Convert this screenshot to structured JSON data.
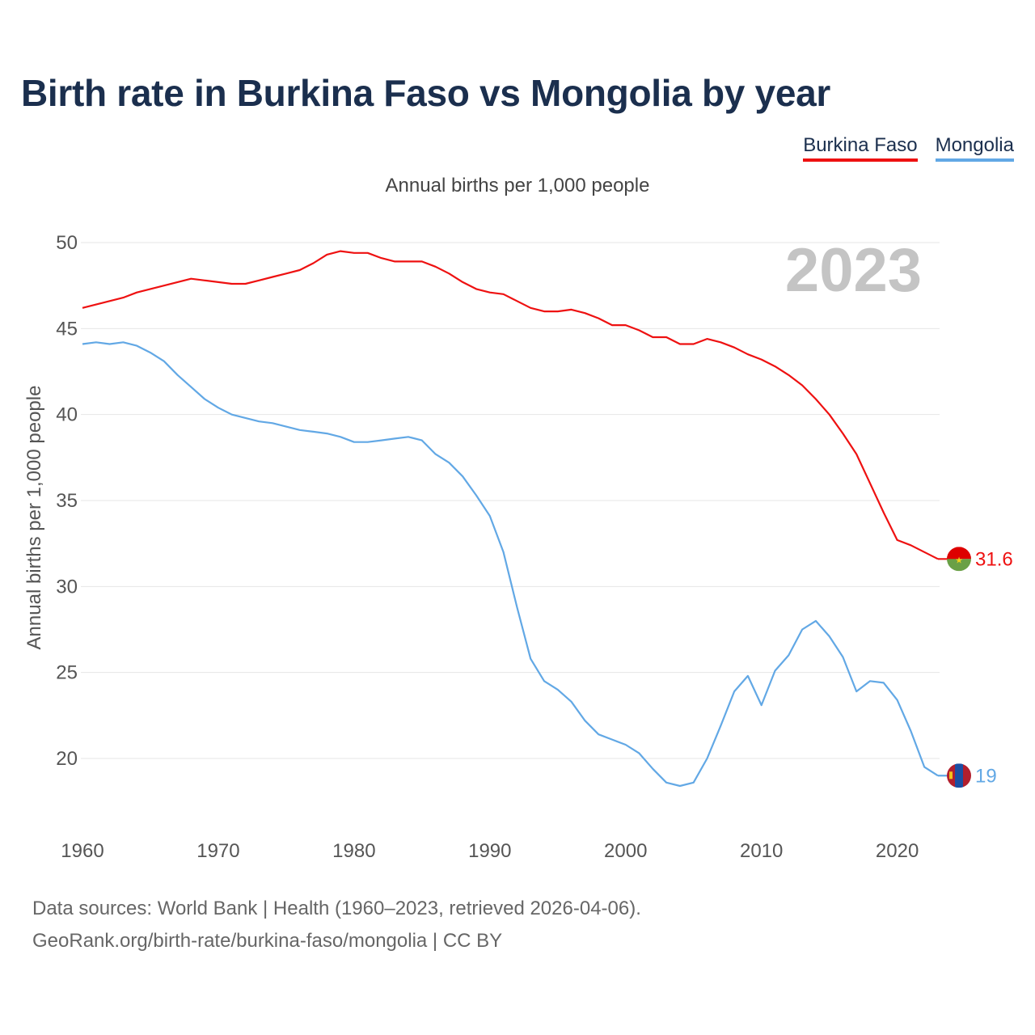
{
  "header": {
    "title": "Birth rate in Burkina Faso vs Mongolia by year"
  },
  "legend": [
    {
      "label": "Burkina Faso",
      "color": "#ee1111"
    },
    {
      "label": "Mongolia",
      "color": "#62a8e5"
    }
  ],
  "chart_data": {
    "type": "line",
    "title": "Birth rate in Burkina Faso vs Mongolia by year",
    "subtitle": "Annual births per 1,000 people",
    "xlabel": "",
    "ylabel": "Annual births per 1,000 people",
    "xlim": [
      1960,
      2023
    ],
    "ylim": [
      17,
      51
    ],
    "x_ticks": [
      1960,
      1970,
      1980,
      1990,
      2000,
      2010,
      2020
    ],
    "y_ticks": [
      20,
      25,
      30,
      35,
      40,
      45,
      50
    ],
    "grid": true,
    "year_label": "2023",
    "x": [
      1960,
      1961,
      1962,
      1963,
      1964,
      1965,
      1966,
      1967,
      1968,
      1969,
      1970,
      1971,
      1972,
      1973,
      1974,
      1975,
      1976,
      1977,
      1978,
      1979,
      1980,
      1981,
      1982,
      1983,
      1984,
      1985,
      1986,
      1987,
      1988,
      1989,
      1990,
      1991,
      1992,
      1993,
      1994,
      1995,
      1996,
      1997,
      1998,
      1999,
      2000,
      2001,
      2002,
      2003,
      2004,
      2005,
      2006,
      2007,
      2008,
      2009,
      2010,
      2011,
      2012,
      2013,
      2014,
      2015,
      2016,
      2017,
      2018,
      2019,
      2020,
      2021,
      2022,
      2023
    ],
    "series": [
      {
        "name": "Burkina Faso",
        "color": "#ee1111",
        "end_label": "31.6",
        "values": [
          46.2,
          46.4,
          46.6,
          46.8,
          47.1,
          47.3,
          47.5,
          47.7,
          47.9,
          47.8,
          47.7,
          47.6,
          47.6,
          47.8,
          48.0,
          48.2,
          48.4,
          48.8,
          49.3,
          49.5,
          49.4,
          49.4,
          49.1,
          48.9,
          48.9,
          48.9,
          48.6,
          48.2,
          47.7,
          47.3,
          47.1,
          47.0,
          46.6,
          46.2,
          46.0,
          46.0,
          46.1,
          45.9,
          45.6,
          45.2,
          45.2,
          44.9,
          44.5,
          44.5,
          44.1,
          44.1,
          44.4,
          44.2,
          43.9,
          43.5,
          43.2,
          42.8,
          42.3,
          41.7,
          40.9,
          40.0,
          38.9,
          37.7,
          36.0,
          34.3,
          32.7,
          32.4,
          32.0,
          31.6
        ]
      },
      {
        "name": "Mongolia",
        "color": "#62a8e5",
        "end_label": "19",
        "values": [
          44.1,
          44.2,
          44.1,
          44.2,
          44.0,
          43.6,
          43.1,
          42.3,
          41.6,
          40.9,
          40.4,
          40.0,
          39.8,
          39.6,
          39.5,
          39.3,
          39.1,
          39.0,
          38.9,
          38.7,
          38.4,
          38.4,
          38.5,
          38.6,
          38.7,
          38.5,
          37.7,
          37.2,
          36.4,
          35.3,
          34.1,
          32.0,
          28.8,
          25.8,
          24.5,
          24.0,
          23.3,
          22.2,
          21.4,
          21.1,
          20.8,
          20.3,
          19.4,
          18.6,
          18.4,
          18.6,
          20.0,
          21.9,
          23.9,
          24.8,
          23.1,
          25.1,
          26.0,
          27.5,
          28.0,
          27.1,
          25.9,
          23.9,
          24.5,
          24.4,
          23.4,
          21.6,
          19.5,
          19.0
        ]
      }
    ]
  },
  "footer": {
    "source_line1": "Data sources: World Bank | Health (1960–2023, retrieved 2026-04-06).",
    "source_line2": "GeoRank.org/birth-rate/burkina-faso/mongolia | CC BY"
  }
}
